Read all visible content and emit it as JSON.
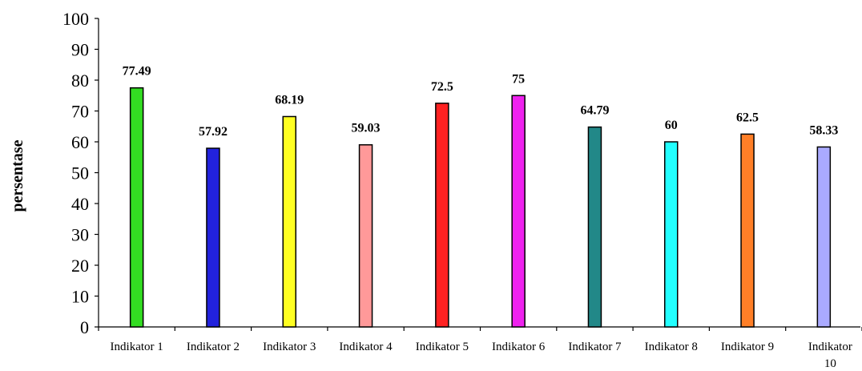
{
  "chart_data": {
    "type": "bar",
    "ylabel": "persentase",
    "xlabel": "",
    "ylim": [
      0,
      100
    ],
    "y_ticks": [
      "0",
      "10",
      "20",
      "30",
      "40",
      "50",
      "60",
      "70",
      "80",
      "90",
      "100"
    ],
    "grid": false,
    "legend": "none",
    "categories": [
      "Indikator 1",
      "Indikator 2",
      "Indikator 3",
      "Indikator 4",
      "Indikator 5",
      "Indikator 6",
      "Indikator 7",
      "Indikator 8",
      "Indikator 9",
      "Indikator 10"
    ],
    "values": [
      77.49,
      57.92,
      68.19,
      59.03,
      72.5,
      75,
      64.79,
      60,
      62.5,
      58.33
    ],
    "value_labels": [
      "77.49",
      "57.92",
      "68.19",
      "59.03",
      "72.5",
      "75",
      "64.79",
      "60",
      "62.5",
      "58.33"
    ],
    "colors": [
      "#33dd22",
      "#2222dd",
      "#ffff22",
      "#ff9999",
      "#ff2222",
      "#ee22ee",
      "#228888",
      "#22ffff",
      "#ff7f27",
      "#aaaaff"
    ]
  }
}
